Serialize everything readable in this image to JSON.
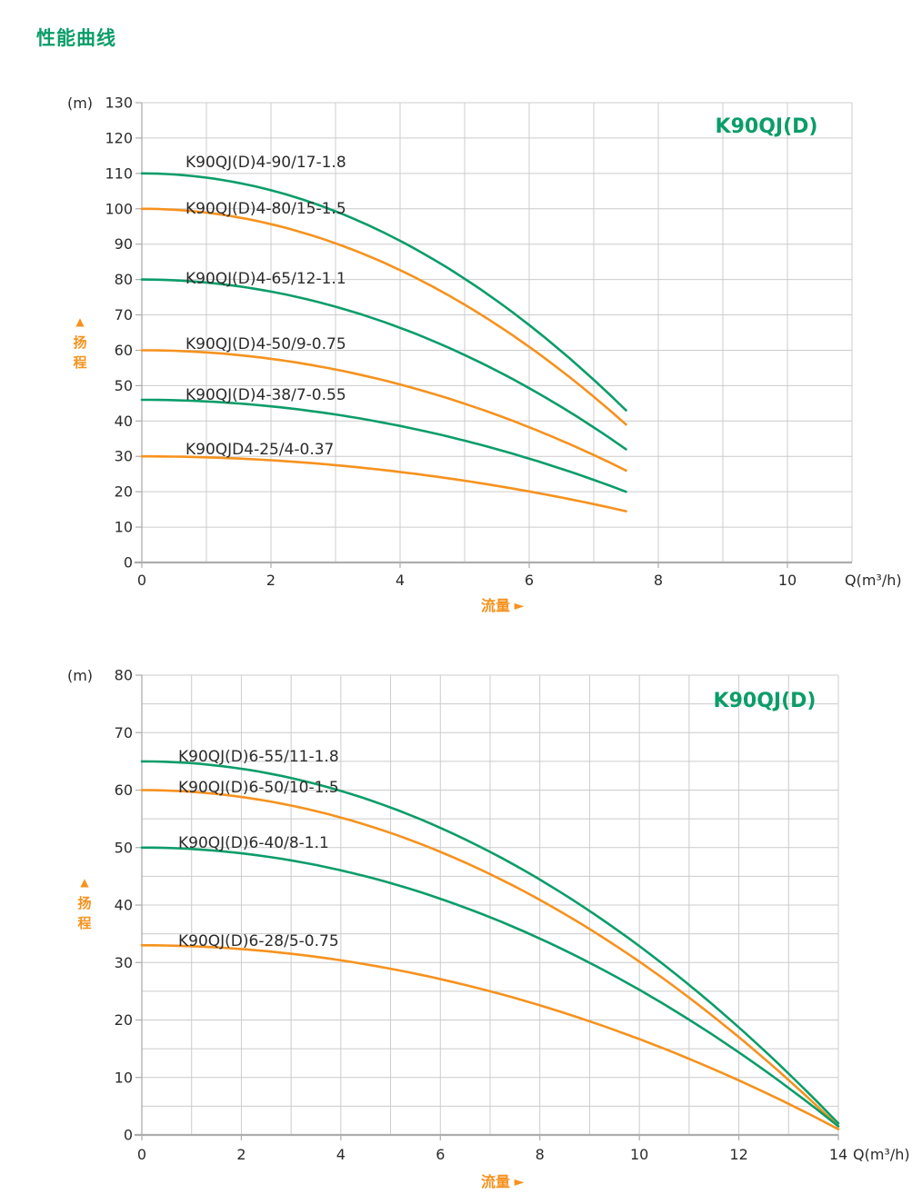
{
  "page_title": "性能曲线",
  "colors": {
    "green": "#0B9D69",
    "orange": "#F6921E",
    "grid": "#CCCCCC",
    "axis": "#ADADAD",
    "text": "#2B2B2B"
  },
  "icons": {
    "flow_arrow_icon": "►",
    "head_arrow_icon": "▲"
  },
  "chart_data": [
    {
      "type": "line",
      "title": "K90QJ(D)",
      "y_unit": "(m)",
      "x_unit": "Q(m³/h)",
      "x_axis_label": "流量",
      "y_axis_label": "扬程",
      "x_range": [
        0,
        11
      ],
      "x_grid_step": 1,
      "x_tick_step": 2,
      "x_tick_max": 10,
      "y_range": [
        0,
        130
      ],
      "y_grid_step": 10,
      "y_tick_step": 10,
      "legend_position": "none",
      "grid": true,
      "series": [
        {
          "name": "K90QJ(D)4-90/17-1.8",
          "color": "green",
          "h0": 110,
          "q_end": 7.5,
          "h_end": 43,
          "points": [
            [
              0,
              110
            ],
            [
              1,
              108.8
            ],
            [
              2,
              105.2
            ],
            [
              3,
              99.3
            ],
            [
              4,
              90.9
            ],
            [
              5,
              80.2
            ],
            [
              6,
              67.1
            ],
            [
              7,
              51.6
            ],
            [
              7.5,
              43
            ]
          ]
        },
        {
          "name": "K90QJ(D)4-80/15-1.5",
          "color": "orange",
          "h0": 100,
          "q_end": 7.5,
          "h_end": 39,
          "points": [
            [
              0,
              100
            ],
            [
              1,
              98.9
            ],
            [
              2,
              95.7
            ],
            [
              3,
              90.2
            ],
            [
              4,
              82.7
            ],
            [
              5,
              72.9
            ],
            [
              6,
              61.0
            ],
            [
              7,
              46.9
            ],
            [
              7.5,
              39
            ]
          ]
        },
        {
          "name": "K90QJ(D)4-65/12-1.1",
          "color": "green",
          "h0": 80,
          "q_end": 7.5,
          "h_end": 32,
          "points": [
            [
              0,
              80
            ],
            [
              1,
              79.1
            ],
            [
              2,
              76.6
            ],
            [
              3,
              72.3
            ],
            [
              4,
              66.3
            ],
            [
              5,
              58.7
            ],
            [
              6,
              49.3
            ],
            [
              7,
              38.2
            ],
            [
              7.5,
              32
            ]
          ]
        },
        {
          "name": "K90QJ(D)4-50/9-0.75",
          "color": "orange",
          "h0": 60,
          "q_end": 7.5,
          "h_end": 26,
          "points": [
            [
              0,
              60
            ],
            [
              1,
              59.4
            ],
            [
              2,
              57.6
            ],
            [
              3,
              54.6
            ],
            [
              4,
              50.3
            ],
            [
              5,
              44.9
            ],
            [
              6,
              38.2
            ],
            [
              7,
              30.4
            ],
            [
              7.5,
              26
            ]
          ]
        },
        {
          "name": "K90QJ(D)4-38/7-0.55",
          "color": "green",
          "h0": 46,
          "q_end": 7.5,
          "h_end": 20,
          "points": [
            [
              0,
              46
            ],
            [
              1,
              45.5
            ],
            [
              2,
              44.2
            ],
            [
              3,
              41.8
            ],
            [
              4,
              38.6
            ],
            [
              5,
              34.4
            ],
            [
              6,
              29.4
            ],
            [
              7,
              23.4
            ],
            [
              7.5,
              20
            ]
          ]
        },
        {
          "name": "K90QJD4-25/4-0.37",
          "color": "orange",
          "h0": 30,
          "q_end": 7.5,
          "h_end": 14.5,
          "points": [
            [
              0,
              30
            ],
            [
              1,
              29.7
            ],
            [
              2,
              28.9
            ],
            [
              3,
              27.5
            ],
            [
              4,
              25.6
            ],
            [
              5,
              23.1
            ],
            [
              6,
              20.1
            ],
            [
              7,
              16.5
            ],
            [
              7.5,
              14.5
            ]
          ]
        }
      ]
    },
    {
      "type": "line",
      "title": "K90QJ(D)",
      "y_unit": "(m)",
      "x_unit": "Q(m³/h)",
      "x_axis_label": "流量",
      "y_axis_label": "扬程",
      "x_range": [
        0,
        14
      ],
      "x_grid_step": 1,
      "x_tick_step": 2,
      "x_tick_max": 14,
      "y_range": [
        0,
        80
      ],
      "y_grid_step": 5,
      "y_tick_step": 10,
      "legend_position": "none",
      "grid": true,
      "series": [
        {
          "name": "K90QJ(D)6-55/11-1.8",
          "color": "green",
          "h0": 65,
          "q_end": 14,
          "h_end": 2,
          "points": [
            [
              0,
              65
            ],
            [
              2,
              63.7
            ],
            [
              4,
              59.9
            ],
            [
              6,
              53.4
            ],
            [
              8,
              44.4
            ],
            [
              10,
              32.9
            ],
            [
              12,
              18.7
            ],
            [
              14,
              2
            ]
          ]
        },
        {
          "name": "K90QJ(D)6-50/10-1.5",
          "color": "orange",
          "h0": 60,
          "q_end": 14,
          "h_end": 1.5,
          "points": [
            [
              0,
              60
            ],
            [
              2,
              58.8
            ],
            [
              4,
              55.2
            ],
            [
              6,
              49.3
            ],
            [
              8,
              40.9
            ],
            [
              10,
              30.2
            ],
            [
              12,
              17.0
            ],
            [
              14,
              1.5
            ]
          ]
        },
        {
          "name": "K90QJ(D)6-40/8-1.1",
          "color": "green",
          "h0": 50,
          "q_end": 14,
          "h_end": 1.5,
          "points": [
            [
              0,
              50
            ],
            [
              2,
              49.0
            ],
            [
              4,
              46.0
            ],
            [
              6,
              41.1
            ],
            [
              8,
              34.2
            ],
            [
              10,
              25.3
            ],
            [
              12,
              14.4
            ],
            [
              14,
              1.5
            ]
          ]
        },
        {
          "name": "K90QJ(D)6-28/5-0.75",
          "color": "orange",
          "h0": 33,
          "q_end": 14,
          "h_end": 1,
          "points": [
            [
              0,
              33
            ],
            [
              2,
              32.3
            ],
            [
              4,
              30.4
            ],
            [
              6,
              27.1
            ],
            [
              8,
              22.5
            ],
            [
              10,
              16.7
            ],
            [
              12,
              9.5
            ],
            [
              14,
              1
            ]
          ]
        }
      ]
    }
  ]
}
